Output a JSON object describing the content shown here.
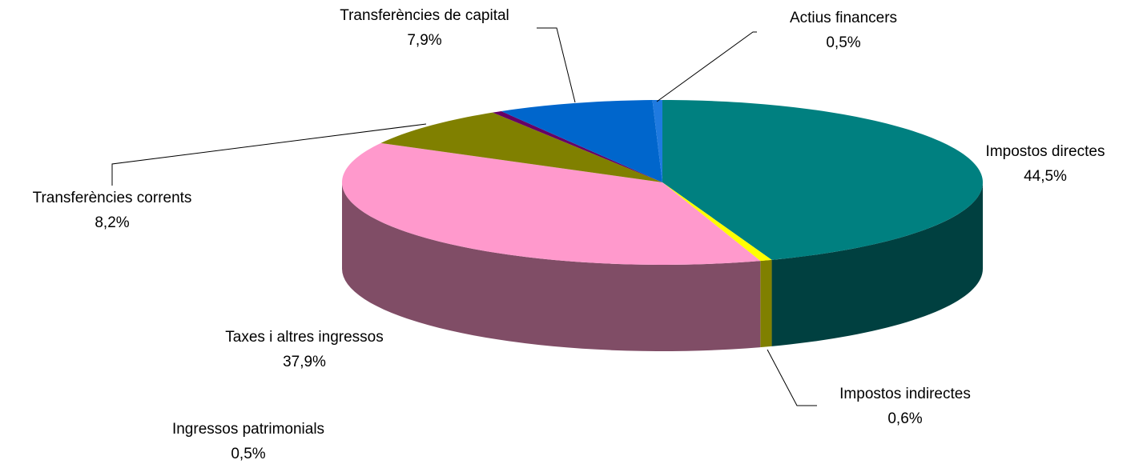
{
  "chart_data": {
    "type": "pie3d",
    "categories": [
      "Impostos directes",
      "Impostos indirectes",
      "Taxes i altres ingressos",
      "Transferències corrents",
      "Ingressos patrimonials",
      "Transferències de capital",
      "Actius financers"
    ],
    "values": [
      44.5,
      0.6,
      37.9,
      8.2,
      0.5,
      7.9,
      0.5
    ],
    "value_labels": [
      "44,5%",
      "0,6%",
      "37,9%",
      "8,2%",
      "0,5%",
      "7,9%",
      "0,5%"
    ],
    "colors": [
      "#008080",
      "#ffff00",
      "#ff99cc",
      "#808000",
      "#660066",
      "#0066cc",
      "#1f7ae0"
    ]
  }
}
